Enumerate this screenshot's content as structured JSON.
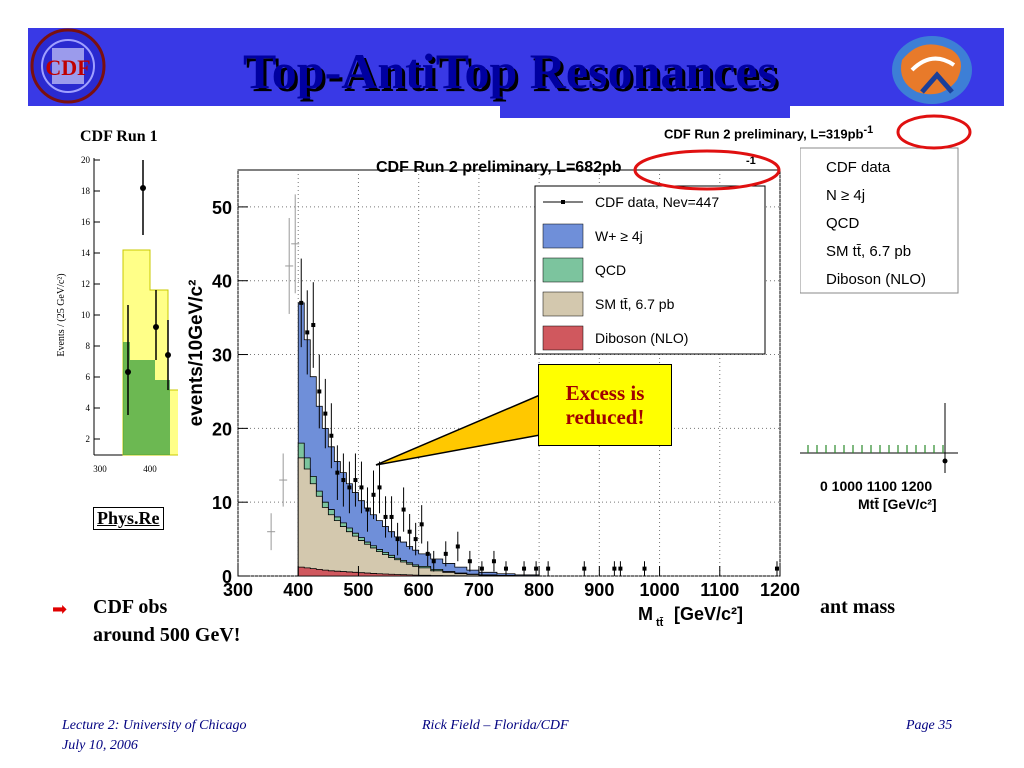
{
  "slide": {
    "title": "Top-AntiTop Resonances",
    "run1_label": "CDF Run 1",
    "phys_ref": "Phys.Re",
    "callout": {
      "line1": "Excess is",
      "line2": "reduced!"
    },
    "bullet_left": "CDF obs",
    "bullet_line2": "around 500 GeV!",
    "bullet_right": "ant mass",
    "footer": {
      "left1": "Lecture 2: University of Chicago",
      "left2": "July 10, 2006",
      "center": "Rick Field – Florida/CDF",
      "right": "Page 35"
    },
    "colors": {
      "header_bar": "#3939e6",
      "title": "#0000a0",
      "callout_bg": "#ffff00",
      "callout_text": "#a00000",
      "circle": "#e01010"
    }
  },
  "run1_plot": {
    "ylabel": "Events / (25 GeV/c²)",
    "yticks": [
      "20",
      "18",
      "16",
      "14",
      "12",
      "10",
      "8",
      "6",
      "4",
      "2"
    ],
    "xticks": [
      "300",
      "400"
    ]
  },
  "run2_319": {
    "title_main": "CDF Run 2 preliminary, L=319pb",
    "title_sup": "-1",
    "legend": [
      "CDF data",
      "N ≥ 4j",
      "QCD",
      "SM tt̄, 6.7 pb",
      "Diboson (NLO)"
    ],
    "xticks_text": "0  1000 1100 1200",
    "xlabel": "Mtt̄ [GeV/c²]"
  },
  "chart_data": {
    "type": "bar",
    "title_main": "CDF Run 2 preliminary, L=682pb",
    "title_sup": "-1",
    "xlabel": "M",
    "xlabel_sub": "tt̄",
    "xlabel_unit": "[GeV/c²]",
    "ylabel": "events/10GeV/c²",
    "xlim": [
      300,
      1200
    ],
    "ylim": [
      0,
      55
    ],
    "xticks": [
      "300",
      "400",
      "500",
      "600",
      "700",
      "800",
      "900",
      "1000",
      "1100",
      "1200"
    ],
    "yticks": [
      "0",
      "10",
      "20",
      "30",
      "40",
      "50"
    ],
    "legend_position": "top-right",
    "legend": [
      {
        "label": "CDF data, Nev=447",
        "color": "#000000",
        "kind": "marker"
      },
      {
        "label": "W+ ≥ 4j",
        "color": "#6f8fd9",
        "kind": "box"
      },
      {
        "label": "QCD",
        "color": "#7cc49e",
        "kind": "box"
      },
      {
        "label": "SM tt̄, 6.7 pb",
        "color": "#d3c8ae",
        "kind": "box"
      },
      {
        "label": "Diboson (NLO)",
        "color": "#d0585e",
        "kind": "box"
      }
    ],
    "stack_bins_x": [
      400,
      410,
      420,
      430,
      440,
      450,
      460,
      470,
      480,
      490,
      500,
      510,
      520,
      530,
      540,
      550,
      560,
      570,
      580,
      590,
      600,
      620,
      640,
      660,
      680,
      700,
      730,
      760,
      800
    ],
    "stack_totals": [
      37,
      32,
      27,
      23,
      20,
      17.5,
      15.5,
      14,
      12.5,
      11.3,
      10.2,
      9.2,
      8.3,
      7.5,
      6.7,
      6,
      5.3,
      4.6,
      4,
      3.5,
      3,
      2.3,
      1.7,
      1.2,
      0.8,
      0.5,
      0.3,
      0.15,
      0
    ],
    "stack_qcd_top": [
      18,
      16,
      13.5,
      11.5,
      10,
      9,
      8,
      7.2,
      6.5,
      5.8,
      5.2,
      4.6,
      4.1,
      3.6,
      3.2,
      2.8,
      2.4,
      2.1,
      1.8,
      1.5,
      1.3,
      0.9,
      0.6,
      0.4,
      0.25,
      0.15,
      0.08,
      0.04,
      0
    ],
    "stack_ttbar_top": [
      16,
      14.5,
      12.5,
      10.8,
      9.3,
      8.3,
      7.5,
      6.7,
      6,
      5.4,
      4.8,
      4.3,
      3.8,
      3.3,
      2.9,
      2.5,
      2.2,
      1.9,
      1.6,
      1.3,
      1.1,
      0.7,
      0.5,
      0.3,
      0.2,
      0.1,
      0.05,
      0.02,
      0
    ],
    "stack_diboson_top": [
      1.2,
      1.1,
      1,
      0.9,
      0.8,
      0.7,
      0.65,
      0.6,
      0.55,
      0.5,
      0.45,
      0.4,
      0.35,
      0.3,
      0.27,
      0.24,
      0.2,
      0.18,
      0.15,
      0.12,
      0.1,
      0.07,
      0.05,
      0.03,
      0.02,
      0.01,
      0,
      0,
      0
    ],
    "data_points": [
      {
        "x": 405,
        "y": 37,
        "err": 6
      },
      {
        "x": 415,
        "y": 33,
        "err": 5.7
      },
      {
        "x": 425,
        "y": 34,
        "err": 5.8
      },
      {
        "x": 435,
        "y": 25,
        "err": 5
      },
      {
        "x": 445,
        "y": 22,
        "err": 4.7
      },
      {
        "x": 455,
        "y": 19,
        "err": 4.4
      },
      {
        "x": 465,
        "y": 14,
        "err": 3.7
      },
      {
        "x": 475,
        "y": 13,
        "err": 3.6
      },
      {
        "x": 485,
        "y": 12,
        "err": 3.5
      },
      {
        "x": 495,
        "y": 13,
        "err": 3.6
      },
      {
        "x": 505,
        "y": 12,
        "err": 3.5
      },
      {
        "x": 515,
        "y": 9,
        "err": 3
      },
      {
        "x": 525,
        "y": 11,
        "err": 3.3
      },
      {
        "x": 535,
        "y": 12,
        "err": 3.5
      },
      {
        "x": 545,
        "y": 8,
        "err": 2.8
      },
      {
        "x": 555,
        "y": 8,
        "err": 2.8
      },
      {
        "x": 565,
        "y": 5,
        "err": 2.2
      },
      {
        "x": 575,
        "y": 9,
        "err": 3
      },
      {
        "x": 585,
        "y": 6,
        "err": 2.4
      },
      {
        "x": 595,
        "y": 5,
        "err": 2.2
      },
      {
        "x": 605,
        "y": 7,
        "err": 2.6
      },
      {
        "x": 615,
        "y": 3,
        "err": 1.7
      },
      {
        "x": 625,
        "y": 2,
        "err": 1.4
      },
      {
        "x": 645,
        "y": 3,
        "err": 1.7
      },
      {
        "x": 665,
        "y": 4,
        "err": 2
      },
      {
        "x": 685,
        "y": 2,
        "err": 1.4
      },
      {
        "x": 705,
        "y": 1,
        "err": 1
      },
      {
        "x": 725,
        "y": 2,
        "err": 1.4
      },
      {
        "x": 745,
        "y": 1,
        "err": 1
      },
      {
        "x": 775,
        "y": 1,
        "err": 1
      },
      {
        "x": 795,
        "y": 1,
        "err": 1
      },
      {
        "x": 815,
        "y": 1,
        "err": 1
      },
      {
        "x": 875,
        "y": 1,
        "err": 1
      },
      {
        "x": 925,
        "y": 1,
        "err": 1
      },
      {
        "x": 935,
        "y": 1,
        "err": 1
      },
      {
        "x": 975,
        "y": 1,
        "err": 1
      },
      {
        "x": 1195,
        "y": 1,
        "err": 1
      }
    ],
    "bg_gray_points": [
      {
        "x": 355,
        "y": 6,
        "err": 2.5
      },
      {
        "x": 375,
        "y": 13,
        "err": 3.6
      },
      {
        "x": 385,
        "y": 42,
        "err": 6.5
      },
      {
        "x": 395,
        "y": 45,
        "err": 6.7
      }
    ]
  }
}
